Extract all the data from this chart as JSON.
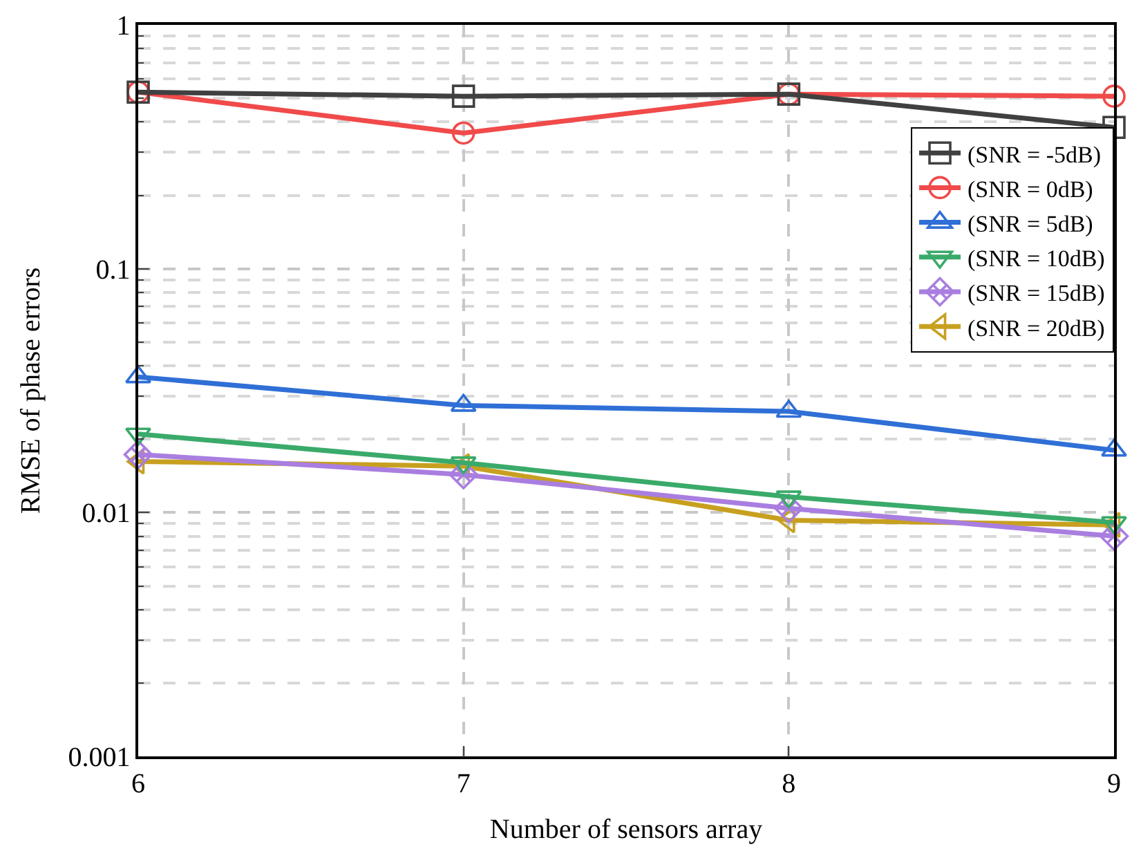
{
  "chart_data": {
    "type": "line",
    "xlabel": "Number of sensors array",
    "ylabel": "RMSE of phase errors",
    "x": [
      6,
      7,
      8,
      9
    ],
    "log": "y",
    "xlim": [
      6,
      9
    ],
    "xticks": [
      6,
      7,
      8,
      9
    ],
    "ylim": [
      0.001,
      1
    ],
    "yticks": [
      0.001,
      0.01,
      0.1,
      1
    ],
    "grid": true,
    "legend": "top right",
    "line_style": "solid",
    "series": [
      {
        "name": "(SNR = -5dB)",
        "color": "#404040",
        "marker": "square",
        "values": [
          0.53,
          0.51,
          0.52,
          0.38
        ]
      },
      {
        "name": "(SNR = 0dB)",
        "color": "#f04a4a",
        "marker": "circle",
        "values": [
          0.53,
          0.36,
          0.52,
          0.51
        ]
      },
      {
        "name": "(SNR = 5dB)",
        "color": "#2f6fd6",
        "marker": "triangle",
        "values": [
          0.036,
          0.0275,
          0.026,
          0.018
        ]
      },
      {
        "name": "(SNR = 10dB)",
        "color": "#3aaa6a",
        "marker": "triangle-down",
        "values": [
          0.021,
          0.016,
          0.0116,
          0.0091
        ]
      },
      {
        "name": "(SNR = 15dB)",
        "color": "#a97ee0",
        "marker": "cross",
        "values": [
          0.0173,
          0.0143,
          0.0104,
          0.008
        ]
      },
      {
        "name": "(SNR = 20dB)",
        "color": "#c8a020",
        "marker": "triangle-left",
        "values": [
          0.0162,
          0.0155,
          0.0093,
          0.0089
        ]
      }
    ]
  }
}
